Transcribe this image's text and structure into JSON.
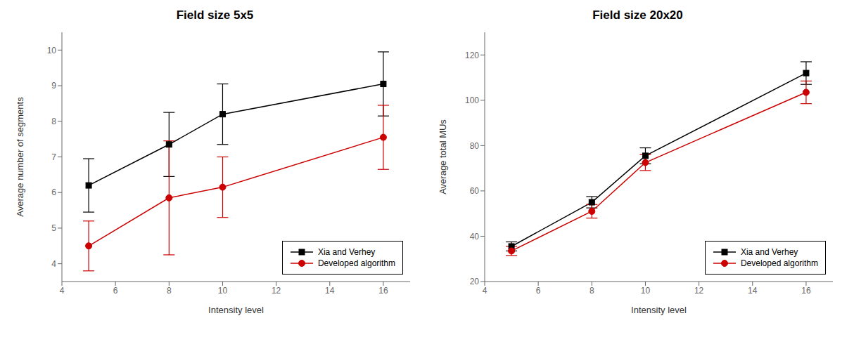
{
  "chart_data": [
    {
      "type": "line",
      "title": "Field size 5x5",
      "x_label": "Intensity level",
      "y_label": "Average number of segments",
      "x": [
        5,
        8,
        10,
        16
      ],
      "xlim": [
        4,
        17
      ],
      "ylim": [
        3.5,
        10.5
      ],
      "xticks": [
        4,
        6,
        8,
        10,
        12,
        14,
        16
      ],
      "yticks": [
        4,
        5,
        6,
        7,
        8,
        9,
        10
      ],
      "grid": false,
      "legend": "lower right",
      "series": [
        {
          "name": "Xia and Verhey",
          "color": "#000000",
          "marker": "square",
          "values": [
            6.2,
            7.35,
            8.2,
            9.05
          ],
          "yerr": [
            0.75,
            0.9,
            0.85,
            0.9
          ]
        },
        {
          "name": "Developed algorithm",
          "color": "#cc0000",
          "marker": "circle",
          "values": [
            4.5,
            5.85,
            6.15,
            7.55
          ],
          "yerr": [
            0.7,
            1.6,
            0.85,
            0.9
          ]
        }
      ]
    },
    {
      "type": "line",
      "title": "Field size 20x20",
      "x_label": "Intensity level",
      "y_label": "Average total MUs",
      "x": [
        5,
        8,
        10,
        16
      ],
      "xlim": [
        4,
        17
      ],
      "ylim": [
        20,
        130
      ],
      "xticks": [
        4,
        6,
        8,
        10,
        12,
        14,
        16
      ],
      "yticks": [
        20,
        40,
        60,
        80,
        100,
        120
      ],
      "grid": false,
      "legend": "lower right",
      "series": [
        {
          "name": "Xia and Verhey",
          "color": "#000000",
          "marker": "square",
          "values": [
            35.5,
            55.0,
            75.5,
            112.0
          ],
          "yerr": [
            2.0,
            2.5,
            3.5,
            5.0
          ]
        },
        {
          "name": "Developed algorithm",
          "color": "#cc0000",
          "marker": "circle",
          "values": [
            33.5,
            51.0,
            72.5,
            103.5
          ],
          "yerr": [
            2.0,
            3.0,
            3.5,
            5.0
          ]
        }
      ]
    }
  ]
}
